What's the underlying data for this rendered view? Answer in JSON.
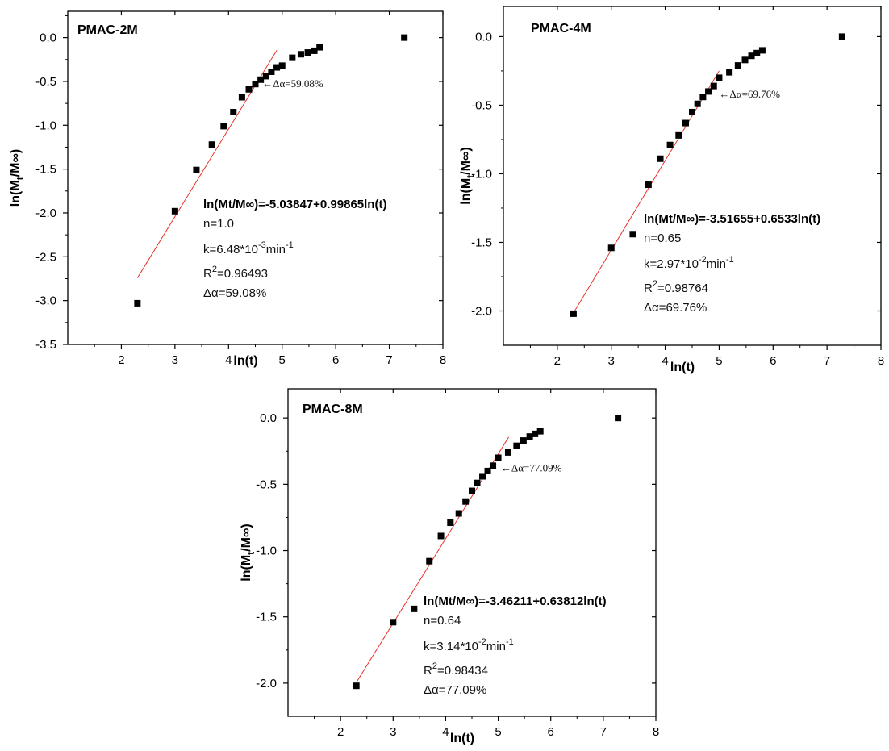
{
  "chart_data": [
    {
      "type": "scatter",
      "title": "PMAC-2M",
      "xlabel": "ln(t)",
      "ylabel_main": "ln(M",
      "ylabel_sub": "t",
      "ylabel_rest": "/M∞)",
      "xlim": [
        1,
        8
      ],
      "ylim": [
        -3.5,
        0.3
      ],
      "xticks": [
        2,
        3,
        4,
        5,
        6,
        7,
        8
      ],
      "yticks": [
        0.0,
        -0.5,
        -1.0,
        -1.5,
        -2.0,
        -2.5,
        -3.0,
        -3.5
      ],
      "ytick_labels": [
        "0.0",
        "-0.5",
        "-1.0",
        "-1.5",
        "-2.0",
        "-2.5",
        "-3.0",
        "-3.5"
      ],
      "x": [
        2.3,
        3.0,
        3.4,
        3.69,
        3.91,
        4.09,
        4.25,
        4.38,
        4.5,
        4.6,
        4.7,
        4.8,
        4.9,
        5.0,
        5.19,
        5.35,
        5.48,
        5.6,
        5.7,
        7.28
      ],
      "y": [
        -3.03,
        -1.98,
        -1.51,
        -1.22,
        -1.01,
        -0.85,
        -0.68,
        -0.59,
        -0.53,
        -0.48,
        -0.44,
        -0.39,
        -0.34,
        -0.32,
        -0.23,
        -0.19,
        -0.17,
        -0.15,
        -0.11,
        0.0
      ],
      "fit": {
        "intercept": -5.03847,
        "slope": 0.99865,
        "x_range": [
          2.3,
          4.9
        ]
      },
      "arrow_label": "←Δα=59.08%",
      "arrow_point": [
        4.6,
        -0.53
      ],
      "annotation": {
        "equation": "ln(Mt/M∞)=-5.03847+0.99865ln(t)",
        "n": "n=1.0",
        "k_main": "k=6.48*10",
        "k_exp": "-3",
        "k_unit": "min",
        "k_unit_exp": "-1",
        "r2_main": "R",
        "r2_exp": "2",
        "r2_val": "=0.96493",
        "delta": "Δα=59.08%"
      }
    },
    {
      "type": "scatter",
      "title": "PMAC-4M",
      "xlabel": "ln(t)",
      "ylabel_main": "ln(M",
      "ylabel_sub": "t",
      "ylabel_rest": "/M∞)",
      "xlim": [
        1,
        8
      ],
      "ylim": [
        -2.25,
        0.22
      ],
      "xticks": [
        2,
        3,
        4,
        5,
        6,
        7,
        8
      ],
      "yticks": [
        0.0,
        -0.5,
        -1.0,
        -1.5,
        -2.0
      ],
      "ytick_labels": [
        "0.0",
        "-0.5",
        "-1.0",
        "-1.5",
        "-2.0"
      ],
      "x": [
        2.3,
        3.0,
        3.4,
        3.69,
        3.91,
        4.09,
        4.25,
        4.38,
        4.5,
        4.6,
        4.7,
        4.8,
        4.9,
        5.0,
        5.19,
        5.35,
        5.48,
        5.6,
        5.7,
        5.8,
        7.28
      ],
      "y": [
        -2.02,
        -1.54,
        -1.44,
        -1.08,
        -0.89,
        -0.79,
        -0.72,
        -0.63,
        -0.55,
        -0.49,
        -0.44,
        -0.4,
        -0.36,
        -0.3,
        -0.26,
        -0.21,
        -0.17,
        -0.14,
        -0.12,
        -0.1,
        0.0
      ],
      "fit": {
        "intercept": -3.51655,
        "slope": 0.6533,
        "x_range": [
          2.3,
          5.0
        ]
      },
      "arrow_label": "←Δα=69.76%",
      "arrow_point": [
        4.97,
        -0.42
      ],
      "annotation": {
        "equation": "ln(Mt/M∞)=-3.51655+0.6533ln(t)",
        "n": "n=0.65",
        "k_main": "k=2.97*10",
        "k_exp": "-2",
        "k_unit": "min",
        "k_unit_exp": "-1",
        "r2_main": "R",
        "r2_exp": "2",
        "r2_val": "=0.98764",
        "delta": "Δα=69.76%"
      }
    },
    {
      "type": "scatter",
      "title": "PMAC-8M",
      "xlabel": "ln(t)",
      "ylabel_main": "ln(M",
      "ylabel_sub": "t",
      "ylabel_rest": "/M∞)",
      "xlim": [
        1,
        8
      ],
      "ylim": [
        -2.25,
        0.22
      ],
      "xticks": [
        2,
        3,
        4,
        5,
        6,
        7,
        8
      ],
      "yticks": [
        0.0,
        -0.5,
        -1.0,
        -1.5,
        -2.0
      ],
      "ytick_labels": [
        "0.0",
        "-0.5",
        "-1.0",
        "-1.5",
        "-2.0"
      ],
      "x": [
        2.3,
        3.0,
        3.4,
        3.69,
        3.91,
        4.09,
        4.25,
        4.38,
        4.5,
        4.6,
        4.7,
        4.8,
        4.9,
        5.0,
        5.19,
        5.35,
        5.48,
        5.6,
        5.7,
        5.8,
        7.28
      ],
      "y": [
        -2.02,
        -1.54,
        -1.44,
        -1.08,
        -0.89,
        -0.79,
        -0.72,
        -0.63,
        -0.55,
        -0.49,
        -0.44,
        -0.4,
        -0.36,
        -0.3,
        -0.26,
        -0.21,
        -0.17,
        -0.14,
        -0.12,
        -0.1,
        0.0
      ],
      "fit": {
        "intercept": -3.46211,
        "slope": 0.63812,
        "x_range": [
          2.3,
          5.2
        ]
      },
      "arrow_label": "←Δα=77.09%",
      "arrow_point": [
        5.02,
        -0.38
      ],
      "annotation": {
        "equation": "ln(Mt/M∞)=-3.46211+0.63812ln(t)",
        "n": "n=0.64",
        "k_main": "k=3.14*10",
        "k_exp": "-2",
        "k_unit": "min",
        "k_unit_exp": "-1",
        "r2_main": "R",
        "r2_exp": "2",
        "r2_val": "=0.98434",
        "delta": "Δα=77.09%"
      }
    }
  ],
  "colors": {
    "marker": "#000000",
    "fit_line": "#e8322b",
    "axis": "#000000"
  }
}
